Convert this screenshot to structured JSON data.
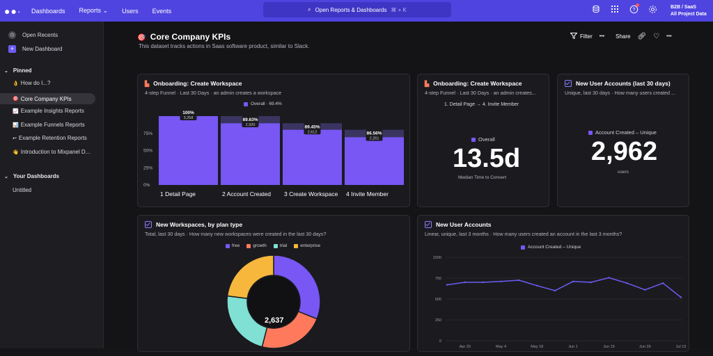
{
  "topbar": {
    "logo": "●●·",
    "nav": [
      "Dashboards",
      "Reports ⌄",
      "Users",
      "Events"
    ],
    "search_placeholder": "Open Reports & Dashboards",
    "search_shortcut": "⌘ + K",
    "icons": [
      "database-icon",
      "grid-icon",
      "help-icon",
      "gear-icon"
    ],
    "account_line1": "B2B / SaaS",
    "account_line2": "All Project Data"
  },
  "sidebar": {
    "open_recents": "Open Recents",
    "new_dashboard": "New Dashboard",
    "pinned_header": "Pinned",
    "pinned": [
      {
        "emoji": "👌",
        "label": "How do I...?"
      },
      {
        "emoji": "🎯",
        "label": "Core Company KPIs"
      },
      {
        "emoji": "📈",
        "label": "Example Insights Reports"
      },
      {
        "emoji": "📊",
        "label": "Example Funnels Reports"
      },
      {
        "emoji": "↩",
        "label": "Example Retention Reports"
      },
      {
        "emoji": "👋",
        "label": "Introduction to Mixpanel D..."
      }
    ],
    "dashboards_header": "Your Dashboards",
    "dashboards": [
      "Untitled"
    ]
  },
  "page": {
    "emoji": "🎯",
    "title": "Core Company KPIs",
    "description": "This dataset tracks actions in Saas software product, similar to Slack.",
    "filter": "Filter",
    "share": "Share",
    "more": "•••"
  },
  "cards": {
    "funnel": {
      "title": "Onboarding: Create Workspace",
      "subtitle": "4-step Funnel · Last 30 Days · an admin creates a workspace",
      "legend": "Overall · 69.4%",
      "accent": "#7857f5",
      "y_ticks": [
        "75%",
        "50%",
        "25%",
        "0%"
      ],
      "steps": [
        {
          "label": "1 Detail Page",
          "pct": "100%",
          "count": "3,258",
          "value": 100
        },
        {
          "label": "2 Account Created",
          "pct": "89.63%",
          "count": "2,920",
          "value": 89.63
        },
        {
          "label": "3 Create Workspace",
          "pct": "89.45%",
          "count": "2,612",
          "value": 80.17
        },
        {
          "label": "4 Invite Member",
          "pct": "86.56%",
          "count": "2,261",
          "value": 69.4
        }
      ]
    },
    "convert": {
      "title": "Onboarding: Create Workspace",
      "subtitle": "4-step Funnel · Last 30 Days · an admin creates...",
      "steps_text": "1. Detail Page → 4. Invite Member",
      "legend": "Overall",
      "value": "13.5d",
      "caption": "Median Time to Convert"
    },
    "new_users": {
      "title": "New User Accounts (last 30 days)",
      "subtitle": "Unique, last 30 days · How many users created ...",
      "legend": "Account Created – Unique",
      "value": "2,962",
      "caption": "users"
    },
    "workspaces": {
      "title": "New Workspaces, by plan type",
      "subtitle": "Total, last 30 days · How many new workspaces were created in the last 30 days?",
      "center_value": "2,637"
    },
    "user_accounts": {
      "title": "New User Accounts",
      "subtitle": "Linear, unique, last 3 months · How many users created an account in the last 3 months?"
    }
  },
  "chart_data": [
    {
      "type": "pie",
      "categories": [
        "free",
        "growth",
        "trial",
        "enterprise"
      ],
      "values": [
        31,
        23,
        23,
        23
      ],
      "colors": [
        "#7857f5",
        "#ff7a5c",
        "#7fe0d3",
        "#f6b73c"
      ]
    },
    {
      "type": "line",
      "series": [
        {
          "name": "Account Created – Unique",
          "x": [
            "Apr 13",
            "Apr 20",
            "Apr 27",
            "May 4",
            "May 11",
            "May 18",
            "May 25",
            "Jun 1",
            "Jun 8",
            "Jun 15",
            "Jun 22",
            "Jun 29",
            "Jul 6",
            "Jul 13"
          ],
          "values": [
            670,
            700,
            700,
            710,
            725,
            660,
            600,
            710,
            700,
            755,
            690,
            610,
            690,
            520
          ]
        }
      ],
      "x_tick_labels": [
        "Apr 20",
        "May 4",
        "May 18",
        "Jun 1",
        "Jun 15",
        "Jun 29",
        "Jul 13"
      ],
      "y_ticks": [
        1000,
        750,
        500,
        250,
        0
      ],
      "ylim": [
        0,
        1000
      ],
      "color": "#6d5cf6"
    }
  ]
}
